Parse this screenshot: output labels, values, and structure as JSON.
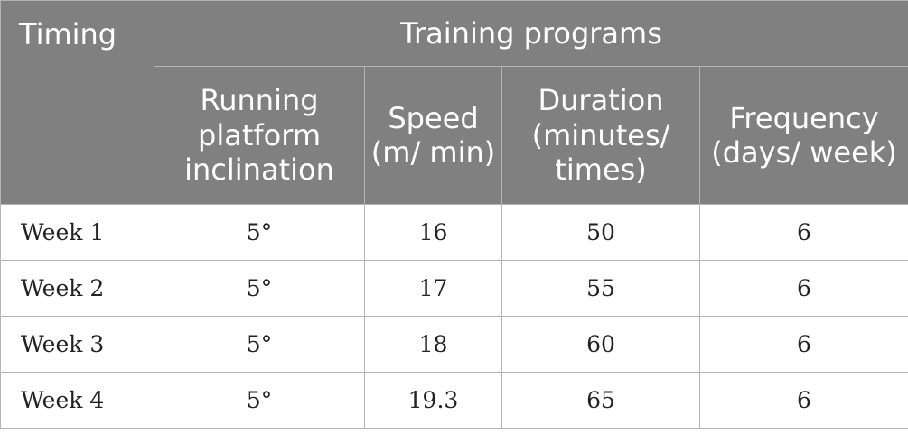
{
  "table": {
    "header": {
      "timing": "Timing",
      "group": "Training programs",
      "columns": [
        "Running platform inclination",
        "Speed (m/ min)",
        "Duration (minutes/ times)",
        "Frequency (days/ week)"
      ]
    },
    "rows": [
      {
        "week": "Week 1",
        "inclination": "5°",
        "speed": "16",
        "duration": "50",
        "frequency": "6"
      },
      {
        "week": "Week 2",
        "inclination": "5°",
        "speed": "17",
        "duration": "55",
        "frequency": "6"
      },
      {
        "week": "Week 3",
        "inclination": "5°",
        "speed": "18",
        "duration": "60",
        "frequency": "6"
      },
      {
        "week": "Week 4",
        "inclination": "5°",
        "speed": "19.3",
        "duration": "65",
        "frequency": "6"
      }
    ]
  },
  "colors": {
    "header_bg": "#808080",
    "header_text": "#ffffff",
    "border": "#b3b3b3"
  }
}
